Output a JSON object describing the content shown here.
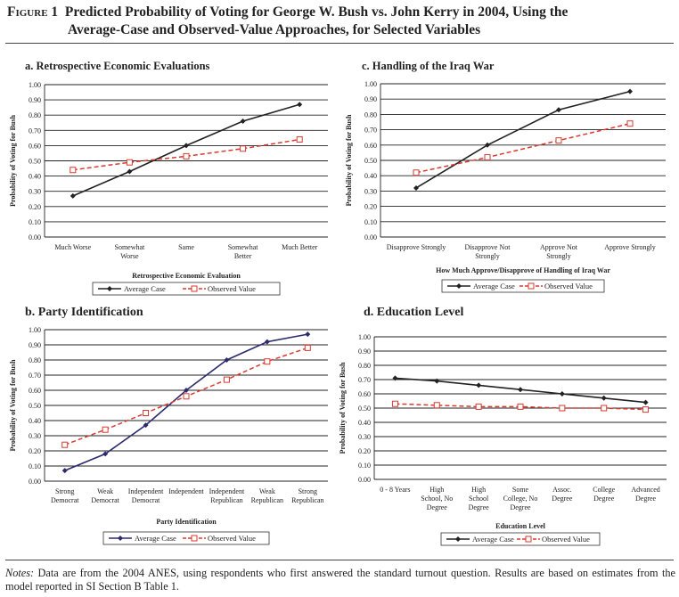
{
  "figure": {
    "number_label": "Figure 1",
    "title_line1": "Predicted Probability of Voting for George W. Bush vs. John Kerry in 2004, Using the",
    "title_line2": "Average-Case and Observed-Value Approaches, for Selected Variables"
  },
  "notes": {
    "label": "Notes:",
    "text": " Data are from the 2004 ANES, using respondents who first answered the standard turnout question. Results are based on estimates from the model reported in SI Section B Table 1."
  },
  "colors": {
    "average_case_a": "#222222",
    "average_case_b": "#2b2b6e",
    "observed_value": "#d93a2f"
  },
  "chart_data": [
    {
      "type": "line",
      "id": "a",
      "title": "a. Retrospective Economic Evaluations",
      "xlabel": "Retrospective Economic Evaluation",
      "ylabel": "Probability of Voting for Bush",
      "categories": [
        [
          "Much Worse"
        ],
        [
          "Somewhat",
          "Worse"
        ],
        [
          "Same"
        ],
        [
          "Somewhat",
          "Better"
        ],
        [
          "Much Better"
        ]
      ],
      "y_ticks": [
        "0.00",
        "0.10",
        "0.20",
        "0.30",
        "0.40",
        "0.50",
        "0.60",
        "0.70",
        "0.80",
        "0.90",
        "1.00"
      ],
      "ylim": [
        0,
        1
      ],
      "grid": true,
      "legend_position": "bottom",
      "series": [
        {
          "name": "Average Case",
          "values": [
            0.27,
            0.43,
            0.6,
            0.76,
            0.87
          ]
        },
        {
          "name": "Observed Value",
          "values": [
            0.44,
            0.49,
            0.53,
            0.58,
            0.64
          ]
        }
      ]
    },
    {
      "type": "line",
      "id": "c",
      "title": "c. Handling of the Iraq War",
      "xlabel": "How Much Approve/Disapprove of Handling of Iraq War",
      "ylabel": "Probability of Voting for Bush",
      "categories": [
        [
          "Disapprove Strongly"
        ],
        [
          "Disapprove Not",
          "Strongly"
        ],
        [
          "Approve Not",
          "Strongly"
        ],
        [
          "Approve Strongly"
        ]
      ],
      "y_ticks": [
        "0.00",
        "0.10",
        "0.20",
        "0.30",
        "0.40",
        "0.50",
        "0.60",
        "0.70",
        "0.80",
        "0.90",
        "1.00"
      ],
      "ylim": [
        0,
        1
      ],
      "grid": true,
      "legend_position": "bottom",
      "series": [
        {
          "name": "Average Case",
          "values": [
            0.32,
            0.6,
            0.83,
            0.95
          ]
        },
        {
          "name": "Observed Value",
          "values": [
            0.42,
            0.52,
            0.63,
            0.74
          ]
        }
      ]
    },
    {
      "type": "line",
      "id": "b",
      "title": "b. Party Identification",
      "xlabel": "Party Identification",
      "ylabel": "Probability of Voting for Bush",
      "categories": [
        [
          "Strong",
          "Democrat"
        ],
        [
          "Weak",
          "Democrat"
        ],
        [
          "Independent",
          "Democrat"
        ],
        [
          "Independent"
        ],
        [
          "Independent",
          "Republican"
        ],
        [
          "Weak",
          "Republican"
        ],
        [
          "Strong",
          "Republican"
        ]
      ],
      "y_ticks": [
        "0.00",
        "0.10",
        "0.20",
        "0.30",
        "0.40",
        "0.50",
        "0.60",
        "0.70",
        "0.80",
        "0.90",
        "1.00"
      ],
      "ylim": [
        0,
        1
      ],
      "grid": true,
      "legend_position": "bottom",
      "series": [
        {
          "name": "Average Case",
          "values": [
            0.07,
            0.18,
            0.37,
            0.6,
            0.8,
            0.92,
            0.97
          ]
        },
        {
          "name": "Observed Value",
          "values": [
            0.24,
            0.34,
            0.45,
            0.56,
            0.67,
            0.79,
            0.88
          ]
        }
      ]
    },
    {
      "type": "line",
      "id": "d",
      "title": "d. Education Level",
      "xlabel": "Education Level",
      "ylabel": "Probability of Voting for Bush",
      "categories": [
        [
          "0 - 8 Years"
        ],
        [
          "High",
          "School, No",
          "Degree"
        ],
        [
          "High",
          "School",
          "Degree"
        ],
        [
          "Some",
          "College, No",
          "Degree"
        ],
        [
          "Assoc.",
          "Degree"
        ],
        [
          "College",
          "Degree"
        ],
        [
          "Advanced",
          "Degree"
        ]
      ],
      "y_ticks": [
        "0.00",
        "0.10",
        "0.20",
        "0.30",
        "0.40",
        "0.50",
        "0.60",
        "0.70",
        "0.80",
        "0.90",
        "1.00"
      ],
      "ylim": [
        0,
        1
      ],
      "grid": true,
      "legend_position": "bottom",
      "series": [
        {
          "name": "Average Case",
          "values": [
            0.71,
            0.69,
            0.66,
            0.63,
            0.6,
            0.57,
            0.54
          ]
        },
        {
          "name": "Observed Value",
          "values": [
            0.53,
            0.52,
            0.51,
            0.51,
            0.5,
            0.5,
            0.49
          ]
        }
      ]
    }
  ]
}
